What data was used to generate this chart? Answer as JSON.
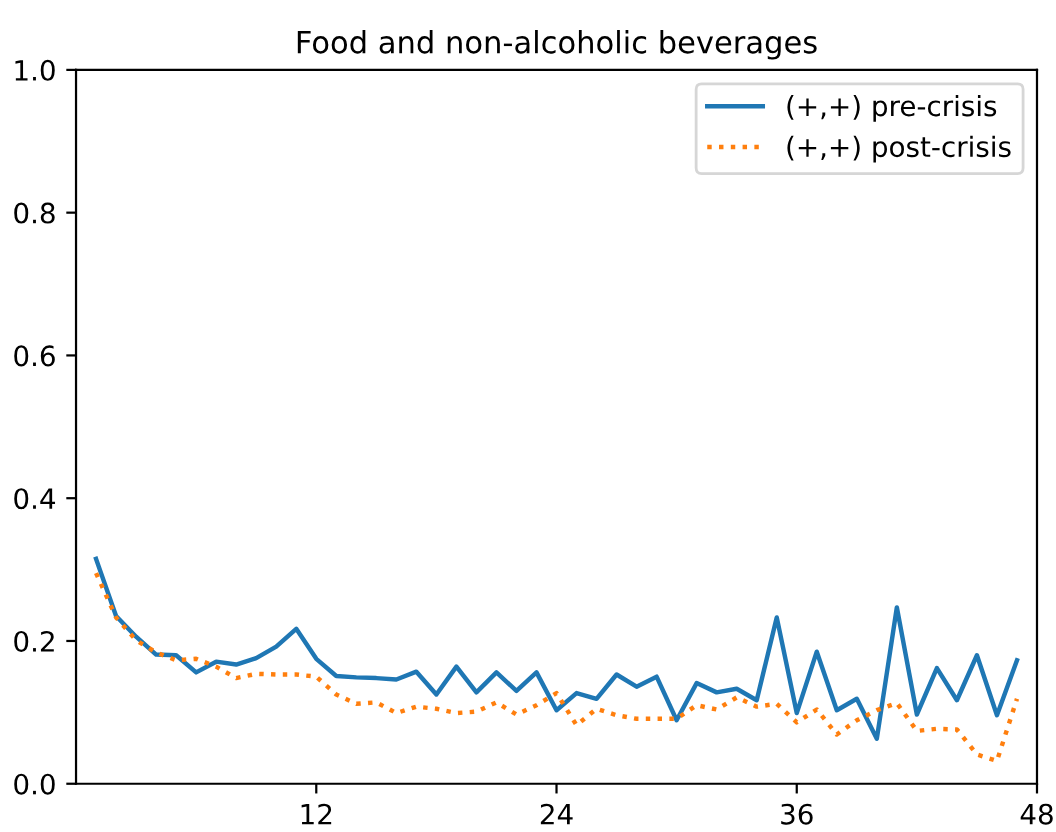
{
  "chart_data": {
    "type": "line",
    "title": "Food and non-alcoholic beverages",
    "x": [
      1,
      2,
      3,
      4,
      5,
      6,
      7,
      8,
      9,
      10,
      11,
      12,
      13,
      14,
      15,
      16,
      17,
      18,
      19,
      20,
      21,
      22,
      23,
      24,
      25,
      26,
      27,
      28,
      29,
      30,
      31,
      32,
      33,
      34,
      35,
      36,
      37,
      38,
      39,
      40,
      41,
      42,
      43,
      44,
      45,
      46,
      47
    ],
    "series": [
      {
        "name": "(+,+) pre-crisis",
        "color": "#1f77b4",
        "line_style": "solid",
        "values": [
          0.315,
          0.235,
          0.206,
          0.181,
          0.18,
          0.156,
          0.171,
          0.167,
          0.176,
          0.192,
          0.217,
          0.175,
          0.151,
          0.149,
          0.148,
          0.146,
          0.157,
          0.125,
          0.164,
          0.128,
          0.156,
          0.13,
          0.156,
          0.103,
          0.127,
          0.119,
          0.153,
          0.136,
          0.15,
          0.089,
          0.141,
          0.128,
          0.133,
          0.117,
          0.233,
          0.099,
          0.185,
          0.103,
          0.119,
          0.063,
          0.247,
          0.097,
          0.162,
          0.117,
          0.18,
          0.096,
          0.173
        ]
      },
      {
        "name": "(+,+) post-crisis",
        "color": "#ff7f0e",
        "line_style": "dotted",
        "values": [
          0.295,
          0.233,
          0.201,
          0.184,
          0.173,
          0.175,
          0.164,
          0.148,
          0.154,
          0.153,
          0.153,
          0.15,
          0.125,
          0.112,
          0.114,
          0.099,
          0.108,
          0.105,
          0.099,
          0.101,
          0.114,
          0.097,
          0.11,
          0.127,
          0.082,
          0.105,
          0.096,
          0.091,
          0.091,
          0.091,
          0.11,
          0.104,
          0.121,
          0.108,
          0.112,
          0.086,
          0.104,
          0.069,
          0.089,
          0.103,
          0.113,
          0.074,
          0.077,
          0.076,
          0.041,
          0.032,
          0.119
        ]
      }
    ],
    "xlim": [
      0,
      48
    ],
    "xticks": [
      12,
      24,
      36,
      48
    ],
    "ylim": [
      0,
      1
    ],
    "yticks": [
      {
        "value": 0,
        "label": "0.0"
      },
      {
        "value": 0.2,
        "label": "0.2"
      },
      {
        "value": 0.4,
        "label": "0.4"
      },
      {
        "value": 0.6,
        "label": "0.6"
      },
      {
        "value": 0.8,
        "label": "0.8"
      },
      {
        "value": 1,
        "label": "1.0"
      }
    ],
    "legend": "top right",
    "grid": false
  }
}
